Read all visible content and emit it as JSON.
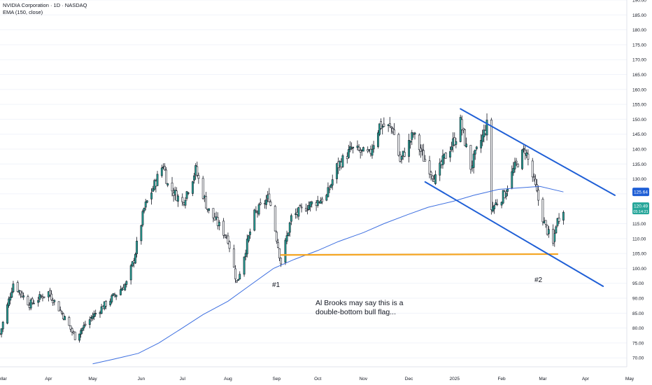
{
  "header": {
    "symbol_line": "NVIDIA Corporation · 1D · NASDAQ",
    "indicator_line": "EMA (150, close)"
  },
  "colors": {
    "up": "#26a69a",
    "down": "#131722",
    "ema": "#3d6fe0",
    "channel": "#1f5fd6",
    "support": "#f5a623",
    "grid": "#f0f3fa",
    "axis_text": "#131722"
  },
  "chart_data": {
    "type": "candlestick",
    "title": "NVIDIA Corporation · 1D · NASDAQ",
    "y_axis": {
      "range": [
        67,
        190
      ],
      "ticks": [
        "70.00",
        "75.00",
        "80.00",
        "85.00",
        "90.00",
        "95.00",
        "100.00",
        "105.00",
        "110.00",
        "115.00",
        "120.00",
        "125.00",
        "130.00",
        "135.00",
        "140.00",
        "145.00",
        "150.00",
        "155.00",
        "160.00",
        "165.00",
        "170.00",
        "175.00",
        "180.00",
        "185.00",
        "190.00"
      ]
    },
    "x_axis": {
      "labels": [
        "Mar",
        "Apr",
        "May",
        "Jun",
        "Jul",
        "Aug",
        "Sep",
        "Oct",
        "Nov",
        "Dec",
        "2025",
        "Feb",
        "Mar",
        "Apr",
        "May"
      ]
    },
    "price_points": [
      [
        "2024-02-28",
        78
      ],
      [
        "2024-03-08",
        95
      ],
      [
        "2024-03-19",
        88
      ],
      [
        "2024-04-01",
        92
      ],
      [
        "2024-04-10",
        85
      ],
      [
        "2024-04-19",
        77
      ],
      [
        "2024-05-01",
        84
      ],
      [
        "2024-05-14",
        90
      ],
      [
        "2024-05-24",
        95
      ],
      [
        "2024-05-29",
        103
      ],
      [
        "2024-06-05",
        120
      ],
      [
        "2024-06-18",
        135
      ],
      [
        "2024-06-21",
        128
      ],
      [
        "2024-07-01",
        122
      ],
      [
        "2024-07-10",
        133
      ],
      [
        "2024-07-18",
        120
      ],
      [
        "2024-08-01",
        110
      ],
      [
        "2024-08-07",
        95
      ],
      [
        "2024-08-19",
        118
      ],
      [
        "2024-08-29",
        124
      ],
      [
        "2024-09-06",
        102
      ],
      [
        "2024-09-13",
        117
      ],
      [
        "2024-09-24",
        121
      ],
      [
        "2024-10-07",
        124
      ],
      [
        "2024-10-14",
        134
      ],
      [
        "2024-10-24",
        140
      ],
      [
        "2024-11-05",
        138
      ],
      [
        "2024-11-12",
        148
      ],
      [
        "2024-11-21",
        147
      ],
      [
        "2024-11-26",
        136
      ],
      [
        "2024-12-05",
        145
      ],
      [
        "2024-12-12",
        137
      ],
      [
        "2024-12-20",
        130
      ],
      [
        "2024-12-26",
        137
      ],
      [
        "2025-01-03",
        144
      ],
      [
        "2025-01-06",
        149
      ],
      [
        "2025-01-13",
        134
      ],
      [
        "2025-01-24",
        148
      ],
      [
        "2025-01-27",
        120
      ],
      [
        "2025-02-05",
        125
      ],
      [
        "2025-02-11",
        133
      ],
      [
        "2025-02-19",
        140
      ],
      [
        "2025-02-26",
        127
      ],
      [
        "2025-03-04",
        115
      ],
      [
        "2025-03-10",
        108
      ],
      [
        "2025-03-12",
        115
      ],
      [
        "2025-03-17",
        120.49
      ]
    ],
    "ema_150": [
      [
        "2024-05-01",
        68
      ],
      [
        "2024-05-15",
        69.5
      ],
      [
        "2024-06-01",
        71.5
      ],
      [
        "2024-06-15",
        75
      ],
      [
        "2024-07-01",
        80
      ],
      [
        "2024-07-15",
        84.5
      ],
      [
        "2024-08-01",
        89
      ],
      [
        "2024-08-15",
        94
      ],
      [
        "2024-09-01",
        100
      ],
      [
        "2024-09-15",
        103
      ],
      [
        "2024-10-01",
        106
      ],
      [
        "2024-10-15",
        109
      ],
      [
        "2024-11-01",
        112
      ],
      [
        "2024-11-15",
        115
      ],
      [
        "2024-12-01",
        118
      ],
      [
        "2024-12-15",
        120.5
      ],
      [
        "2025-01-01",
        122.5
      ],
      [
        "2025-01-15",
        124.5
      ],
      [
        "2025-02-01",
        126.5
      ],
      [
        "2025-02-15",
        127
      ],
      [
        "2025-03-01",
        127.5
      ],
      [
        "2025-03-17",
        125.64
      ]
    ],
    "last_price": "120.49",
    "last_countdown": "05:14:21",
    "ema_last": "125.64",
    "annotations": {
      "label_1": "#1",
      "label_2": "#2",
      "note_line_1": "Al Brooks may say this is a",
      "note_line_2": "double-bottom bull flag..."
    },
    "drawings": {
      "support_line": {
        "from": [
          "2024-09-06",
          104.5
        ],
        "to": [
          "2025-03-13",
          104.8
        ]
      },
      "channel_upper": {
        "from": [
          "2025-01-06",
          153.5
        ],
        "to": [
          "2025-04-21",
          124.5
        ]
      },
      "channel_lower": {
        "from": [
          "2024-12-13",
          129
        ],
        "to": [
          "2025-04-13",
          94
        ]
      }
    }
  }
}
